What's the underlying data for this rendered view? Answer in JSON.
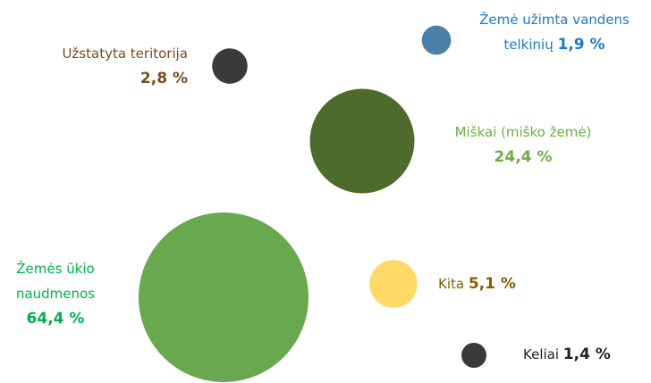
{
  "chart_data": {
    "type": "bubble",
    "categories": [
      "Užstatyta teritorija",
      "Žemė užimta vandens telkinių",
      "Miškai (miško žemė)",
      "Žemės ūkio naudmenos",
      "Kita",
      "Keliai"
    ],
    "values": [
      2.8,
      1.9,
      24.4,
      64.4,
      5.1,
      1.4
    ],
    "value_labels": [
      "2,8 %",
      "1,9 %",
      "24,4 %",
      "64,4 %",
      "5,1 %",
      "1,4 %"
    ],
    "colors": [
      "#3a3a3a",
      "#4a7fa8",
      "#4e6b2e",
      "#6aa84f",
      "#ffd966",
      "#3a3a3a"
    ],
    "label_colors": [
      "#7b4a1e",
      "#1f7ac0",
      "#70ad47",
      "#00b050",
      "#7f6000",
      "#222222"
    ]
  }
}
